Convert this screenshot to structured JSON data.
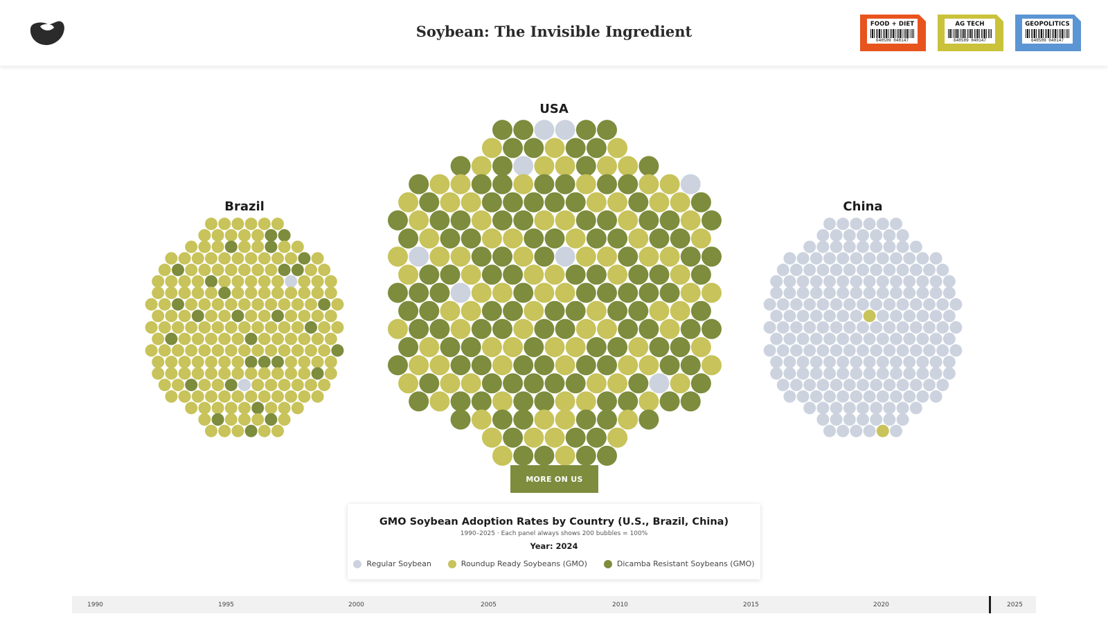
{
  "header": {
    "site_title": "Soybean: The Invisible Ingredient",
    "logo_icon": "soybean-logo-icon",
    "tags": [
      {
        "label": "FOOD + DIET",
        "code": "640509 040147",
        "color": "#e8541e"
      },
      {
        "label": "AG TECH",
        "code": "640509 040147",
        "color": "#c9c23a"
      },
      {
        "label": "GEOPOLITICS",
        "code": "640509 040147",
        "color": "#5b95d3"
      }
    ]
  },
  "countries": {
    "brazil": {
      "label": "Brazil"
    },
    "usa": {
      "label": "USA"
    },
    "china": {
      "label": "China"
    }
  },
  "more_button": {
    "label": "MORE ON US"
  },
  "legend": {
    "title": "GMO Soybean Adoption Rates by Country (U.S., Brazil, China)",
    "subtitle": "1990–2025 · Each panel always shows 200 bubbles = 100%",
    "year_text": "Year: 2024",
    "items": [
      {
        "label": "Regular Soybean",
        "color": "#ccd3df"
      },
      {
        "label": "Roundup Ready Soybeans (GMO)",
        "color": "#c8c35a"
      },
      {
        "label": "Dicamba Resistant Soybeans (GMO)",
        "color": "#7d8c3d"
      }
    ]
  },
  "timeline": {
    "ticks": [
      "1990",
      "1995",
      "2000",
      "2005",
      "2010",
      "2015",
      "2020",
      "2025"
    ],
    "range": [
      1990,
      2025
    ],
    "selected_year": 2024
  }
}
